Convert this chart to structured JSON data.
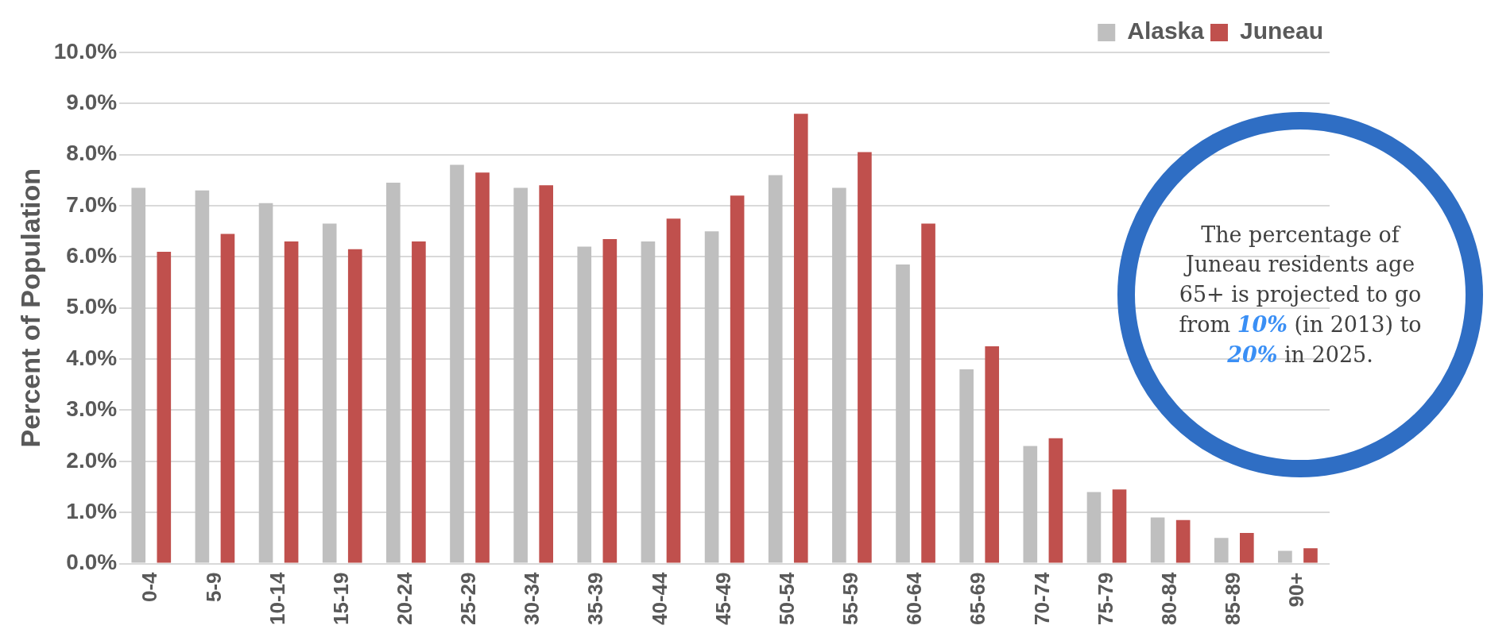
{
  "chart_data": {
    "type": "bar",
    "ylabel": "Percent of Population",
    "categories": [
      "0-4",
      "5-9",
      "10-14",
      "15-19",
      "20-24",
      "25-29",
      "30-34",
      "35-39",
      "40-44",
      "45-49",
      "50-54",
      "55-59",
      "60-64",
      "65-69",
      "70-74",
      "75-79",
      "80-84",
      "85-89",
      "90+"
    ],
    "series": [
      {
        "name": "Alaska",
        "color": "#bfbfbf",
        "values": [
          7.35,
          7.3,
          7.05,
          6.65,
          7.45,
          7.8,
          7.35,
          6.2,
          6.3,
          6.5,
          7.6,
          7.35,
          5.85,
          3.8,
          2.3,
          1.4,
          0.9,
          0.5,
          0.25
        ]
      },
      {
        "name": "Juneau",
        "color": "#c0504d",
        "values": [
          6.1,
          6.45,
          6.3,
          6.15,
          6.3,
          7.65,
          7.4,
          6.35,
          6.75,
          7.2,
          8.8,
          8.05,
          6.65,
          4.25,
          2.45,
          1.45,
          0.85,
          0.6,
          0.3
        ]
      }
    ],
    "ylim": [
      0,
      10
    ],
    "yticks": [
      {
        "value": 0,
        "label": "0.0%"
      },
      {
        "value": 1,
        "label": "1.0%"
      },
      {
        "value": 2,
        "label": "2.0%"
      },
      {
        "value": 3,
        "label": "3.0%"
      },
      {
        "value": 4,
        "label": "4.0%"
      },
      {
        "value": 5,
        "label": "5.0%"
      },
      {
        "value": 6,
        "label": "6.0%"
      },
      {
        "value": 7,
        "label": "7.0%"
      },
      {
        "value": 8,
        "label": "8.0%"
      },
      {
        "value": 9,
        "label": "9.0%"
      },
      {
        "value": 10,
        "label": "10.0%"
      }
    ],
    "grid": "y",
    "legend": "top right",
    "annotations": [
      "The percentage of Juneau residents age 65+ is projected to go from 10% (in 2013) to 20% in 2025."
    ]
  }
}
